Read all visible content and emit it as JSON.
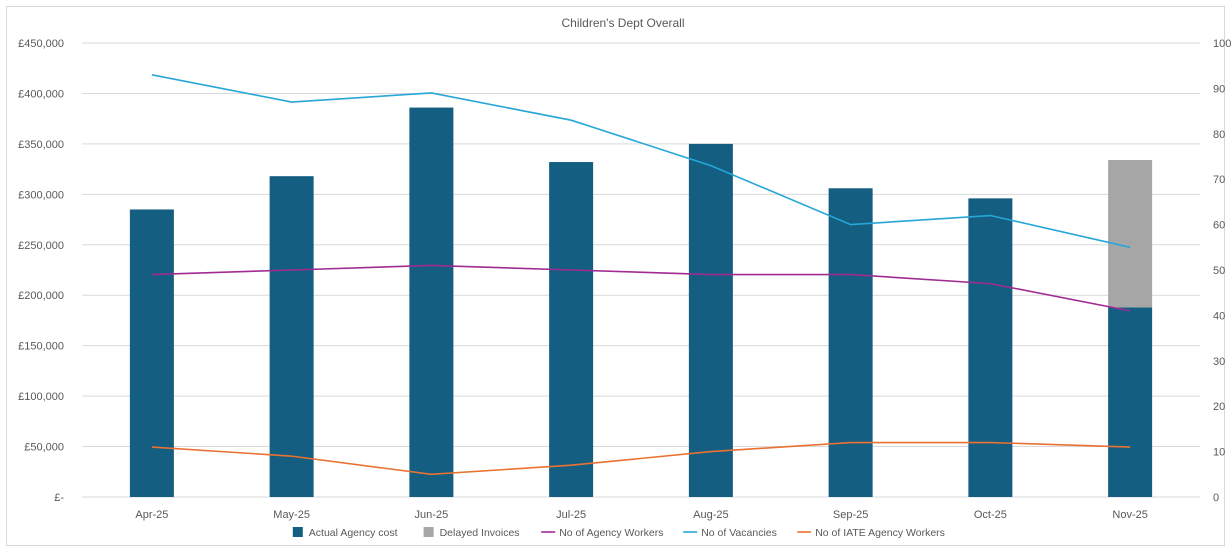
{
  "chart_data": {
    "type": "bar",
    "title": "Children's Dept Overall",
    "categories": [
      "Apr-25",
      "May-25",
      "Jun-25",
      "Jul-25",
      "Aug-25",
      "Sep-25",
      "Oct-25",
      "Nov-25"
    ],
    "y_left": {
      "min": 0,
      "max": 450000,
      "step": 50000,
      "tick_labels": [
        "£-",
        "£50,000",
        "£100,000",
        "£150,000",
        "£200,000",
        "£250,000",
        "£300,000",
        "£350,000",
        "£400,000",
        "£450,000"
      ]
    },
    "y_right": {
      "min": 0,
      "max": 100,
      "step": 10,
      "tick_labels": [
        "0",
        "10",
        "20",
        "30",
        "40",
        "50",
        "60",
        "70",
        "80",
        "90",
        "100"
      ]
    },
    "gridlines": true,
    "legend_position": "bottom",
    "bar_series": [
      {
        "name": "Actual Agency cost",
        "color": "#145e82",
        "axis": "left",
        "values": [
          285000,
          318000,
          386000,
          332000,
          350000,
          306000,
          296000,
          188000
        ]
      },
      {
        "name": "Delayed Invoices",
        "color": "#a6a6a6",
        "axis": "left",
        "values": [
          0,
          0,
          0,
          0,
          0,
          0,
          0,
          146000
        ]
      }
    ],
    "line_series": [
      {
        "name": "No of Agency Workers",
        "color": "#a02b93",
        "axis": "right",
        "values": [
          49,
          50,
          51,
          50,
          49,
          49,
          47,
          41
        ]
      },
      {
        "name": "No of Vacancies",
        "color": "#27a6d8",
        "axis": "right",
        "values": [
          93,
          87,
          89,
          83,
          73,
          60,
          62,
          55
        ]
      },
      {
        "name": "No of IATE Agency Workers",
        "color": "#e97132",
        "axis": "right",
        "values": [
          11,
          9,
          5,
          7,
          10,
          12,
          12,
          11
        ]
      }
    ]
  }
}
